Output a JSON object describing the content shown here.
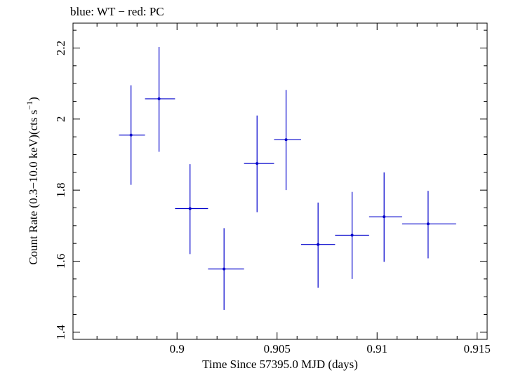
{
  "chart_data": {
    "type": "scatter",
    "title": "blue: WT − red: PC",
    "xlabel": "Time Since 57395.0 MJD (days)",
    "ylabel_parts": {
      "pre": "Count Rate (0.3−10.0 keV)(cts s",
      "sup": "−1",
      "post": ")"
    },
    "xlim": [
      0.8948,
      0.9155
    ],
    "ylim": [
      1.38,
      2.27
    ],
    "x_ticks": [
      0.9,
      0.905,
      0.91,
      0.915
    ],
    "x_tick_labels": [
      "0.9",
      "0.905",
      "0.91",
      "0.915"
    ],
    "y_ticks": [
      1.4,
      1.6,
      1.8,
      2.0,
      2.2
    ],
    "y_tick_labels": [
      "1.4",
      "1.6",
      "1.8",
      "2",
      "2.2"
    ],
    "series": [
      {
        "color": "#0000cc",
        "points": [
          {
            "x": 0.8977,
            "xerr": [
              0.8971,
              0.8984
            ],
            "y": 1.955,
            "yerr": [
              1.815,
              2.095
            ]
          },
          {
            "x": 0.8991,
            "xerr": [
              0.8984,
              0.8999
            ],
            "y": 2.057,
            "yerr": [
              1.908,
              2.203
            ]
          },
          {
            "x": 0.90065,
            "xerr": [
              0.8999,
              0.90155
            ],
            "y": 1.748,
            "yerr": [
              1.62,
              1.873
            ]
          },
          {
            "x": 0.90235,
            "xerr": [
              0.90155,
              0.90335
            ],
            "y": 1.578,
            "yerr": [
              1.463,
              1.693
            ]
          },
          {
            "x": 0.904,
            "xerr": [
              0.90335,
              0.90485
            ],
            "y": 1.875,
            "yerr": [
              1.738,
              2.01
            ]
          },
          {
            "x": 0.90545,
            "xerr": [
              0.90485,
              0.9062
            ],
            "y": 1.942,
            "yerr": [
              1.8,
              2.082
            ]
          },
          {
            "x": 0.90705,
            "xerr": [
              0.9062,
              0.9079
            ],
            "y": 1.647,
            "yerr": [
              1.525,
              1.765
            ]
          },
          {
            "x": 0.90875,
            "xerr": [
              0.9079,
              0.9096
            ],
            "y": 1.673,
            "yerr": [
              1.55,
              1.795
            ]
          },
          {
            "x": 0.91035,
            "xerr": [
              0.9096,
              0.91125
            ],
            "y": 1.725,
            "yerr": [
              1.598,
              1.85
            ]
          },
          {
            "x": 0.91255,
            "xerr": [
              0.91125,
              0.91395
            ],
            "y": 1.705,
            "yerr": [
              1.608,
              1.798
            ]
          }
        ]
      }
    ]
  }
}
